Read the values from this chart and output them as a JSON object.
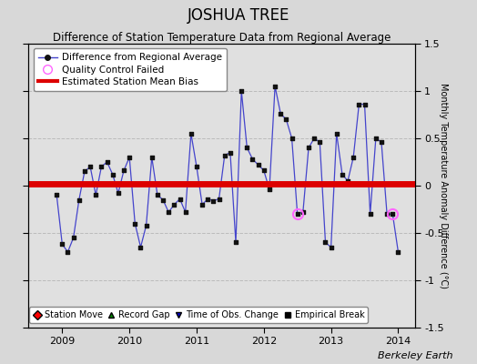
{
  "title": "JOSHUA TREE",
  "subtitle": "Difference of Station Temperature Data from Regional Average",
  "ylabel_right": "Monthly Temperature Anomaly Difference (°C)",
  "bias": 0.02,
  "xlim": [
    2008.5,
    2014.25
  ],
  "ylim": [
    -1.5,
    1.5
  ],
  "yticks": [
    -1.5,
    -1.0,
    -0.5,
    0.0,
    0.5,
    1.0,
    1.5
  ],
  "ytick_labels": [
    "-1.5",
    "-1",
    "-0.5",
    "0",
    "0.5",
    "1",
    "1.5"
  ],
  "xticks": [
    2009,
    2010,
    2011,
    2012,
    2013,
    2014
  ],
  "fig_facecolor": "#d8d8d8",
  "plot_facecolor": "#e0e0e0",
  "line_color": "#4444cc",
  "marker_color": "#111111",
  "bias_color": "#dd0000",
  "qc_color": "#ff66ff",
  "grid_color": "#bbbbbb",
  "footer": "Berkeley Earth",
  "monthly_data": [
    [
      2008.917,
      -0.1
    ],
    [
      2009.0,
      -0.62
    ],
    [
      2009.083,
      -0.7
    ],
    [
      2009.167,
      -0.55
    ],
    [
      2009.25,
      -0.15
    ],
    [
      2009.333,
      0.15
    ],
    [
      2009.417,
      0.2
    ],
    [
      2009.5,
      -0.1
    ],
    [
      2009.583,
      0.2
    ],
    [
      2009.667,
      0.25
    ],
    [
      2009.75,
      0.12
    ],
    [
      2009.833,
      -0.08
    ],
    [
      2009.917,
      0.16
    ],
    [
      2010.0,
      0.3
    ],
    [
      2010.083,
      -0.4
    ],
    [
      2010.167,
      -0.65
    ],
    [
      2010.25,
      -0.42
    ],
    [
      2010.333,
      0.3
    ],
    [
      2010.417,
      -0.1
    ],
    [
      2010.5,
      -0.15
    ],
    [
      2010.583,
      -0.28
    ],
    [
      2010.667,
      -0.2
    ],
    [
      2010.75,
      -0.14
    ],
    [
      2010.833,
      -0.28
    ],
    [
      2010.917,
      0.55
    ],
    [
      2011.0,
      0.2
    ],
    [
      2011.083,
      -0.2
    ],
    [
      2011.167,
      -0.14
    ],
    [
      2011.25,
      -0.16
    ],
    [
      2011.333,
      -0.14
    ],
    [
      2011.417,
      0.32
    ],
    [
      2011.5,
      0.35
    ],
    [
      2011.583,
      -0.6
    ],
    [
      2011.667,
      1.0
    ],
    [
      2011.75,
      0.4
    ],
    [
      2011.833,
      0.28
    ],
    [
      2011.917,
      0.22
    ],
    [
      2012.0,
      0.16
    ],
    [
      2012.083,
      -0.04
    ],
    [
      2012.167,
      1.05
    ],
    [
      2012.25,
      0.76
    ],
    [
      2012.333,
      0.7
    ],
    [
      2012.417,
      0.5
    ],
    [
      2012.5,
      -0.3
    ],
    [
      2012.583,
      -0.28
    ],
    [
      2012.667,
      0.4
    ],
    [
      2012.75,
      0.5
    ],
    [
      2012.833,
      0.46
    ],
    [
      2012.917,
      -0.6
    ],
    [
      2013.0,
      -0.65
    ],
    [
      2013.083,
      0.55
    ],
    [
      2013.167,
      0.12
    ],
    [
      2013.25,
      0.05
    ],
    [
      2013.333,
      0.3
    ],
    [
      2013.417,
      0.86
    ],
    [
      2013.5,
      0.86
    ],
    [
      2013.583,
      -0.3
    ],
    [
      2013.667,
      0.5
    ],
    [
      2013.75,
      0.46
    ],
    [
      2013.833,
      -0.3
    ],
    [
      2013.917,
      -0.3
    ],
    [
      2014.0,
      -0.7
    ]
  ],
  "qc_failed_points": [
    [
      2012.5,
      -0.3
    ],
    [
      2013.917,
      -0.3
    ]
  ],
  "title_fontsize": 12,
  "subtitle_fontsize": 8.5,
  "tick_fontsize": 8,
  "legend_fontsize": 7.5,
  "footer_fontsize": 8
}
